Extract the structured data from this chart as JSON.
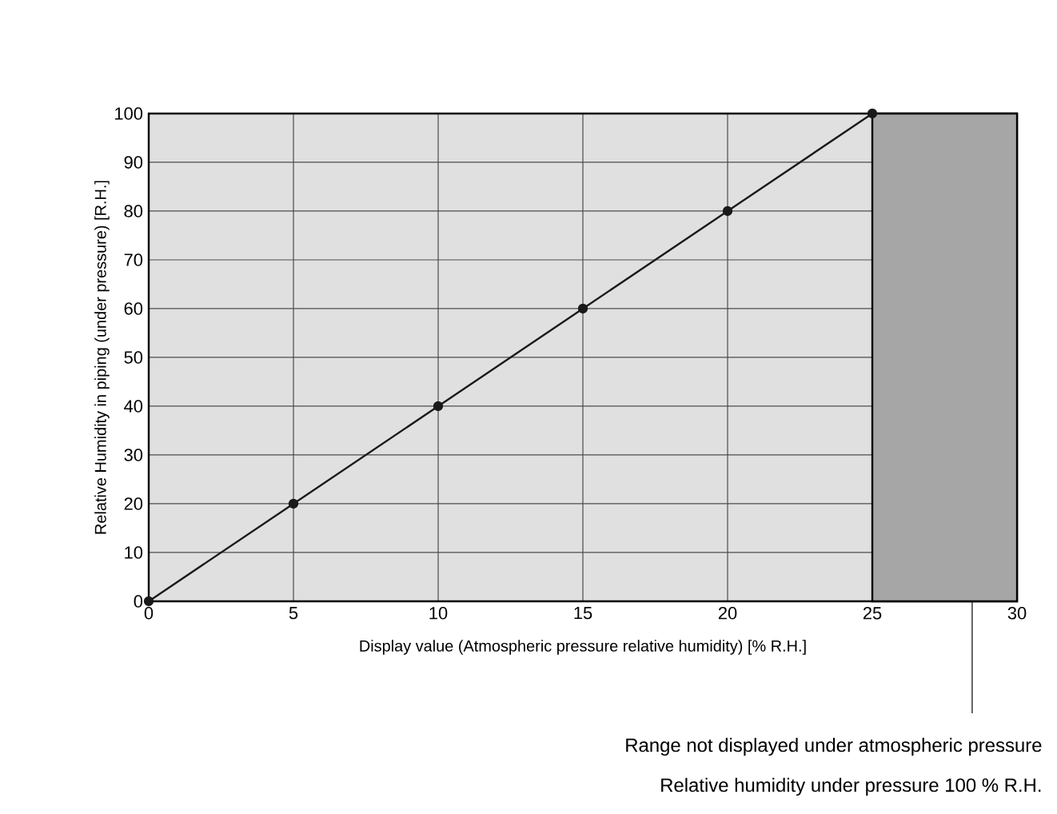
{
  "chart_data": {
    "type": "line",
    "xlabel": "Display value (Atmospheric pressure relative humidity) [% R.H.]",
    "ylabel": "Relative Humidity in piping (under pressure) [R.H.]",
    "x": [
      0,
      5,
      10,
      15,
      20,
      25
    ],
    "series": [
      {
        "color": "#1a1a1a",
        "values": [
          0,
          20,
          40,
          60,
          80,
          100
        ]
      }
    ],
    "marker": "circle",
    "line_style": "solid",
    "grid": true,
    "xlim": [
      0,
      30
    ],
    "ylim": [
      0,
      100
    ],
    "xticks": [
      0,
      5,
      10,
      15,
      20,
      25,
      30
    ],
    "yticks": [
      0,
      10,
      20,
      30,
      40,
      50,
      60,
      70,
      80,
      90,
      100
    ],
    "bands": [
      {
        "axis": "x",
        "from": 25,
        "to": 30,
        "color": "#a6a6a6"
      }
    ],
    "annotations": [
      "Range not displayed under atmospheric pressure",
      "Relative humidity under pressure 100 % R.H."
    ]
  }
}
